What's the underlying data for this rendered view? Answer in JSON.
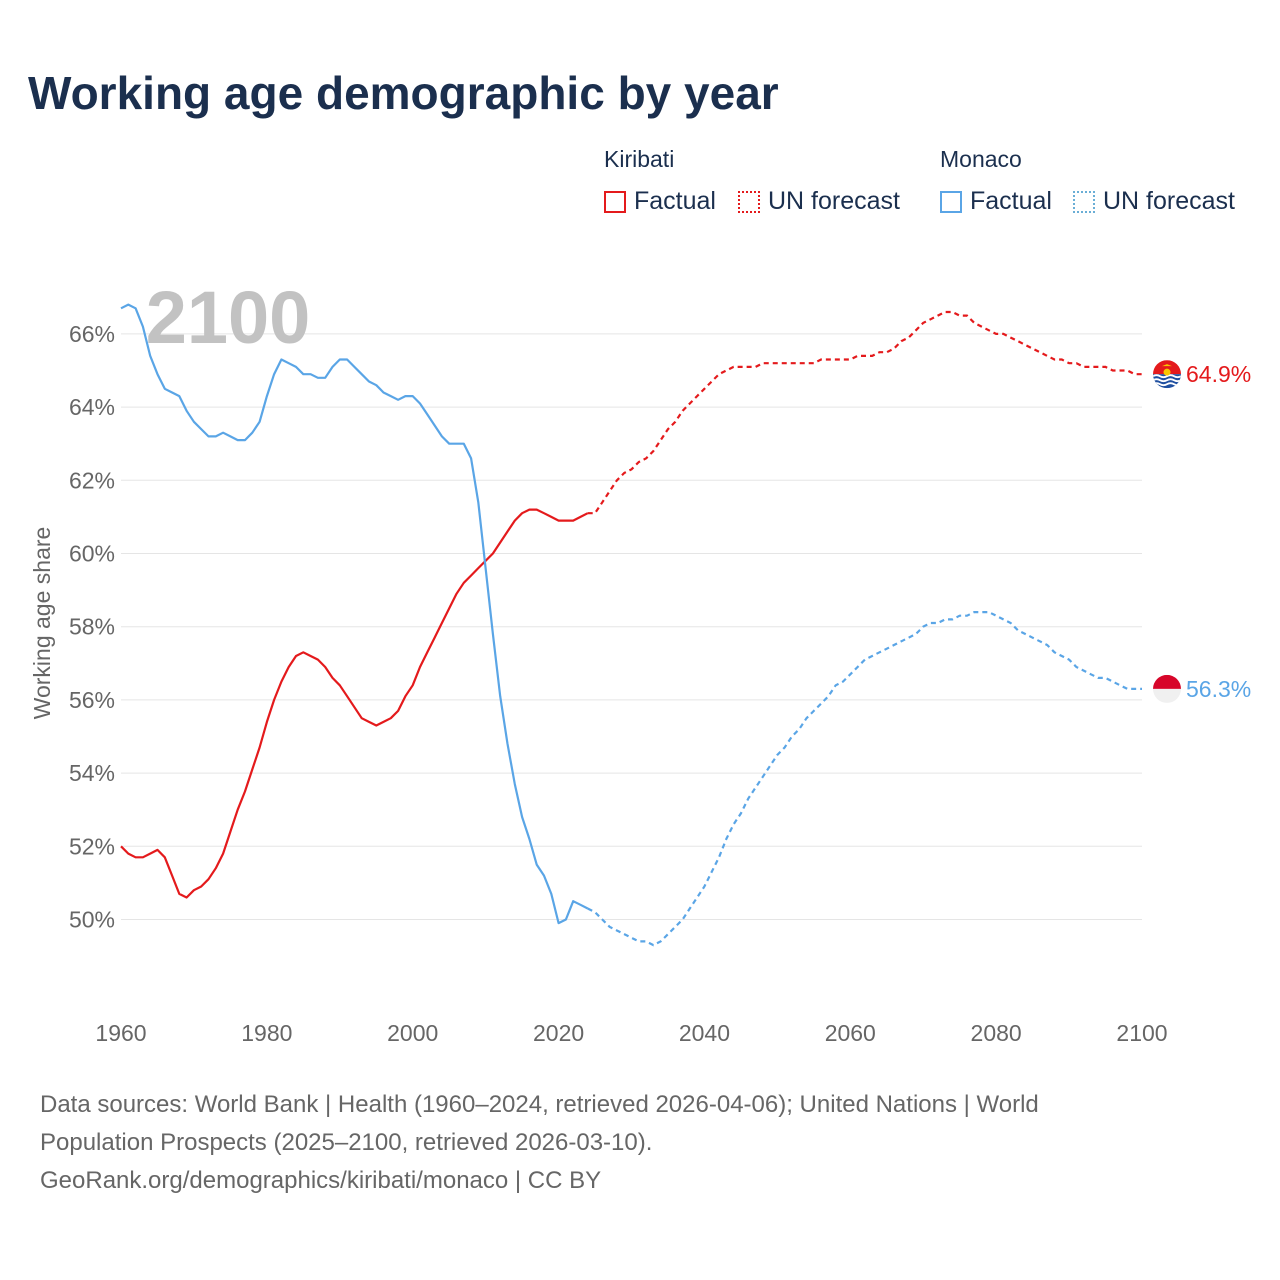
{
  "title": "Working age demographic by year",
  "legend": {
    "groups": [
      {
        "name": "Kiribati",
        "factual": "Factual",
        "forecast": "UN forecast",
        "color": "#e41a1c",
        "forecast_color": "#e41a1c"
      },
      {
        "name": "Monaco",
        "factual": "Factual",
        "forecast": "UN forecast",
        "color": "#5aa5e6",
        "forecast_color": "#6aaed6"
      }
    ]
  },
  "colors": {
    "kiribati": "#e41a1c",
    "monaco": "#5aa5e6",
    "grid": "#e5e5e5",
    "axis_text": "#666666",
    "year_watermark": "#c2c2c2"
  },
  "chart_data": {
    "type": "line",
    "title": "Working age demographic by year",
    "year_watermark": "2100",
    "xlabel": "",
    "ylabel": "Working age share",
    "xlim": [
      1960,
      2100
    ],
    "ylim": [
      47.8,
      67.2
    ],
    "x_ticks": [
      1960,
      1980,
      2000,
      2020,
      2040,
      2060,
      2080,
      2100
    ],
    "y_ticks": [
      50,
      52,
      54,
      56,
      58,
      60,
      62,
      64,
      66
    ],
    "y_tick_labels": [
      "50%",
      "52%",
      "54%",
      "56%",
      "58%",
      "60%",
      "62%",
      "64%",
      "66%"
    ],
    "factual_range": [
      1960,
      2024
    ],
    "forecast_range": [
      2025,
      2100
    ],
    "series": [
      {
        "name": "Kiribati",
        "color": "#e41a1c",
        "end_label": "64.9%",
        "points": [
          [
            1960,
            52.0
          ],
          [
            1961,
            51.8
          ],
          [
            1962,
            51.7
          ],
          [
            1963,
            51.7
          ],
          [
            1964,
            51.8
          ],
          [
            1965,
            51.9
          ],
          [
            1966,
            51.7
          ],
          [
            1967,
            51.2
          ],
          [
            1968,
            50.7
          ],
          [
            1969,
            50.6
          ],
          [
            1970,
            50.8
          ],
          [
            1971,
            50.9
          ],
          [
            1972,
            51.1
          ],
          [
            1973,
            51.4
          ],
          [
            1974,
            51.8
          ],
          [
            1975,
            52.4
          ],
          [
            1976,
            53.0
          ],
          [
            1977,
            53.5
          ],
          [
            1978,
            54.1
          ],
          [
            1979,
            54.7
          ],
          [
            1980,
            55.4
          ],
          [
            1981,
            56.0
          ],
          [
            1982,
            56.5
          ],
          [
            1983,
            56.9
          ],
          [
            1984,
            57.2
          ],
          [
            1985,
            57.3
          ],
          [
            1986,
            57.2
          ],
          [
            1987,
            57.1
          ],
          [
            1988,
            56.9
          ],
          [
            1989,
            56.6
          ],
          [
            1990,
            56.4
          ],
          [
            1991,
            56.1
          ],
          [
            1992,
            55.8
          ],
          [
            1993,
            55.5
          ],
          [
            1994,
            55.4
          ],
          [
            1995,
            55.3
          ],
          [
            1996,
            55.4
          ],
          [
            1997,
            55.5
          ],
          [
            1998,
            55.7
          ],
          [
            1999,
            56.1
          ],
          [
            2000,
            56.4
          ],
          [
            2001,
            56.9
          ],
          [
            2002,
            57.3
          ],
          [
            2003,
            57.7
          ],
          [
            2004,
            58.1
          ],
          [
            2005,
            58.5
          ],
          [
            2006,
            58.9
          ],
          [
            2007,
            59.2
          ],
          [
            2008,
            59.4
          ],
          [
            2009,
            59.6
          ],
          [
            2010,
            59.8
          ],
          [
            2011,
            60.0
          ],
          [
            2012,
            60.3
          ],
          [
            2013,
            60.6
          ],
          [
            2014,
            60.9
          ],
          [
            2015,
            61.1
          ],
          [
            2016,
            61.2
          ],
          [
            2017,
            61.2
          ],
          [
            2018,
            61.1
          ],
          [
            2019,
            61.0
          ],
          [
            2020,
            60.9
          ],
          [
            2021,
            60.9
          ],
          [
            2022,
            60.9
          ],
          [
            2023,
            61.0
          ],
          [
            2024,
            61.1
          ],
          [
            2025,
            61.1
          ],
          [
            2026,
            61.4
          ],
          [
            2027,
            61.7
          ],
          [
            2028,
            62.0
          ],
          [
            2029,
            62.2
          ],
          [
            2030,
            62.3
          ],
          [
            2031,
            62.5
          ],
          [
            2032,
            62.6
          ],
          [
            2033,
            62.8
          ],
          [
            2034,
            63.1
          ],
          [
            2035,
            63.4
          ],
          [
            2036,
            63.6
          ],
          [
            2037,
            63.9
          ],
          [
            2038,
            64.1
          ],
          [
            2039,
            64.3
          ],
          [
            2040,
            64.5
          ],
          [
            2041,
            64.7
          ],
          [
            2042,
            64.9
          ],
          [
            2043,
            65.0
          ],
          [
            2044,
            65.1
          ],
          [
            2045,
            65.1
          ],
          [
            2046,
            65.1
          ],
          [
            2047,
            65.1
          ],
          [
            2048,
            65.2
          ],
          [
            2049,
            65.2
          ],
          [
            2050,
            65.2
          ],
          [
            2052,
            65.2
          ],
          [
            2054,
            65.2
          ],
          [
            2055,
            65.2
          ],
          [
            2056,
            65.3
          ],
          [
            2058,
            65.3
          ],
          [
            2060,
            65.3
          ],
          [
            2061,
            65.4
          ],
          [
            2063,
            65.4
          ],
          [
            2064,
            65.5
          ],
          [
            2065,
            65.5
          ],
          [
            2066,
            65.6
          ],
          [
            2067,
            65.8
          ],
          [
            2068,
            65.9
          ],
          [
            2069,
            66.1
          ],
          [
            2070,
            66.3
          ],
          [
            2071,
            66.4
          ],
          [
            2072,
            66.5
          ],
          [
            2073,
            66.6
          ],
          [
            2074,
            66.6
          ],
          [
            2075,
            66.5
          ],
          [
            2076,
            66.5
          ],
          [
            2077,
            66.3
          ],
          [
            2078,
            66.2
          ],
          [
            2079,
            66.1
          ],
          [
            2080,
            66.0
          ],
          [
            2081,
            66.0
          ],
          [
            2082,
            65.9
          ],
          [
            2083,
            65.8
          ],
          [
            2084,
            65.7
          ],
          [
            2085,
            65.6
          ],
          [
            2086,
            65.5
          ],
          [
            2087,
            65.4
          ],
          [
            2088,
            65.3
          ],
          [
            2089,
            65.3
          ],
          [
            2090,
            65.2
          ],
          [
            2091,
            65.2
          ],
          [
            2092,
            65.1
          ],
          [
            2093,
            65.1
          ],
          [
            2094,
            65.1
          ],
          [
            2095,
            65.1
          ],
          [
            2096,
            65.0
          ],
          [
            2097,
            65.0
          ],
          [
            2098,
            65.0
          ],
          [
            2099,
            64.9
          ],
          [
            2100,
            64.9
          ]
        ]
      },
      {
        "name": "Monaco",
        "color": "#5aa5e6",
        "end_label": "56.3%",
        "points": [
          [
            1960,
            66.7
          ],
          [
            1961,
            66.8
          ],
          [
            1962,
            66.7
          ],
          [
            1963,
            66.2
          ],
          [
            1964,
            65.4
          ],
          [
            1965,
            64.9
          ],
          [
            1966,
            64.5
          ],
          [
            1967,
            64.4
          ],
          [
            1968,
            64.3
          ],
          [
            1969,
            63.9
          ],
          [
            1970,
            63.6
          ],
          [
            1971,
            63.4
          ],
          [
            1972,
            63.2
          ],
          [
            1973,
            63.2
          ],
          [
            1974,
            63.3
          ],
          [
            1975,
            63.2
          ],
          [
            1976,
            63.1
          ],
          [
            1977,
            63.1
          ],
          [
            1978,
            63.3
          ],
          [
            1979,
            63.6
          ],
          [
            1980,
            64.3
          ],
          [
            1981,
            64.9
          ],
          [
            1982,
            65.3
          ],
          [
            1983,
            65.2
          ],
          [
            1984,
            65.1
          ],
          [
            1985,
            64.9
          ],
          [
            1986,
            64.9
          ],
          [
            1987,
            64.8
          ],
          [
            1988,
            64.8
          ],
          [
            1989,
            65.1
          ],
          [
            1990,
            65.3
          ],
          [
            1991,
            65.3
          ],
          [
            1992,
            65.1
          ],
          [
            1993,
            64.9
          ],
          [
            1994,
            64.7
          ],
          [
            1995,
            64.6
          ],
          [
            1996,
            64.4
          ],
          [
            1997,
            64.3
          ],
          [
            1998,
            64.2
          ],
          [
            1999,
            64.3
          ],
          [
            2000,
            64.3
          ],
          [
            2001,
            64.1
          ],
          [
            2002,
            63.8
          ],
          [
            2003,
            63.5
          ],
          [
            2004,
            63.2
          ],
          [
            2005,
            63.0
          ],
          [
            2006,
            63.0
          ],
          [
            2007,
            63.0
          ],
          [
            2008,
            62.6
          ],
          [
            2009,
            61.4
          ],
          [
            2010,
            59.6
          ],
          [
            2011,
            57.8
          ],
          [
            2012,
            56.1
          ],
          [
            2013,
            54.8
          ],
          [
            2014,
            53.7
          ],
          [
            2015,
            52.8
          ],
          [
            2016,
            52.2
          ],
          [
            2017,
            51.5
          ],
          [
            2018,
            51.2
          ],
          [
            2019,
            50.7
          ],
          [
            2020,
            49.9
          ],
          [
            2021,
            50.0
          ],
          [
            2022,
            50.5
          ],
          [
            2023,
            50.4
          ],
          [
            2024,
            50.3
          ],
          [
            2025,
            50.2
          ],
          [
            2026,
            50.0
          ],
          [
            2027,
            49.8
          ],
          [
            2028,
            49.7
          ],
          [
            2029,
            49.6
          ],
          [
            2030,
            49.5
          ],
          [
            2031,
            49.4
          ],
          [
            2032,
            49.4
          ],
          [
            2033,
            49.3
          ],
          [
            2034,
            49.4
          ],
          [
            2035,
            49.6
          ],
          [
            2036,
            49.8
          ],
          [
            2037,
            50.0
          ],
          [
            2038,
            50.3
          ],
          [
            2039,
            50.6
          ],
          [
            2040,
            50.9
          ],
          [
            2041,
            51.3
          ],
          [
            2042,
            51.7
          ],
          [
            2043,
            52.2
          ],
          [
            2044,
            52.6
          ],
          [
            2045,
            52.9
          ],
          [
            2046,
            53.3
          ],
          [
            2047,
            53.6
          ],
          [
            2048,
            53.9
          ],
          [
            2049,
            54.2
          ],
          [
            2050,
            54.5
          ],
          [
            2051,
            54.7
          ],
          [
            2052,
            55.0
          ],
          [
            2053,
            55.2
          ],
          [
            2054,
            55.5
          ],
          [
            2055,
            55.7
          ],
          [
            2056,
            55.9
          ],
          [
            2057,
            56.1
          ],
          [
            2058,
            56.4
          ],
          [
            2059,
            56.5
          ],
          [
            2060,
            56.7
          ],
          [
            2061,
            56.9
          ],
          [
            2062,
            57.1
          ],
          [
            2063,
            57.2
          ],
          [
            2064,
            57.3
          ],
          [
            2065,
            57.4
          ],
          [
            2066,
            57.5
          ],
          [
            2067,
            57.6
          ],
          [
            2068,
            57.7
          ],
          [
            2069,
            57.8
          ],
          [
            2070,
            58.0
          ],
          [
            2071,
            58.1
          ],
          [
            2072,
            58.1
          ],
          [
            2073,
            58.2
          ],
          [
            2074,
            58.2
          ],
          [
            2075,
            58.3
          ],
          [
            2076,
            58.3
          ],
          [
            2077,
            58.4
          ],
          [
            2078,
            58.4
          ],
          [
            2079,
            58.4
          ],
          [
            2080,
            58.3
          ],
          [
            2081,
            58.2
          ],
          [
            2082,
            58.1
          ],
          [
            2083,
            57.9
          ],
          [
            2084,
            57.8
          ],
          [
            2085,
            57.7
          ],
          [
            2086,
            57.6
          ],
          [
            2087,
            57.5
          ],
          [
            2088,
            57.3
          ],
          [
            2089,
            57.2
          ],
          [
            2090,
            57.1
          ],
          [
            2091,
            56.9
          ],
          [
            2092,
            56.8
          ],
          [
            2093,
            56.7
          ],
          [
            2094,
            56.6
          ],
          [
            2095,
            56.6
          ],
          [
            2096,
            56.5
          ],
          [
            2097,
            56.4
          ],
          [
            2098,
            56.3
          ],
          [
            2099,
            56.3
          ],
          [
            2100,
            56.3
          ]
        ]
      }
    ]
  },
  "footer": {
    "line1": "Data sources: World Bank | Health (1960–2024, retrieved 2026-04-06); United Nations | World",
    "line2": "Population Prospects (2025–2100, retrieved 2026-03-10).",
    "line3": "GeoRank.org/demographics/kiribati/monaco | CC BY"
  }
}
